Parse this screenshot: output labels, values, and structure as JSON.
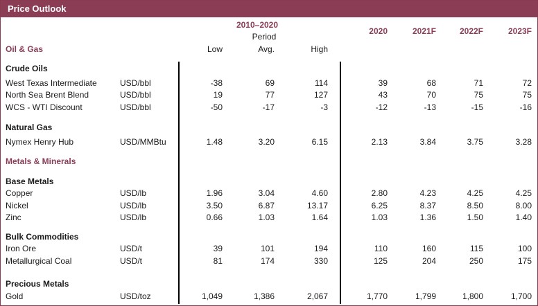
{
  "title": "Price Outlook",
  "header": {
    "period_range": "2010–2020",
    "period_word": "Period",
    "low": "Low",
    "avg": "Avg.",
    "high": "High",
    "years": [
      "2020",
      "2021F",
      "2022F",
      "2023F"
    ]
  },
  "sections": {
    "oil_gas": "Oil & Gas",
    "metals_minerals": "Metals & Minerals"
  },
  "groups": {
    "crude_oils": "Crude Oils",
    "natural_gas": "Natural Gas",
    "base_metals": "Base Metals",
    "bulk_commodities": "Bulk Commodities",
    "precious_metals": "Precious Metals"
  },
  "rows": [
    {
      "name": "West Texas Intermediate",
      "unit": "USD/bbl",
      "low": "-38",
      "avg": "69",
      "high": "114",
      "y2020": "39",
      "y2021": "68",
      "y2022": "71",
      "y2023": "72"
    },
    {
      "name": "North Sea Brent Blend",
      "unit": "USD/bbl",
      "low": "19",
      "avg": "77",
      "high": "127",
      "y2020": "43",
      "y2021": "70",
      "y2022": "75",
      "y2023": "75"
    },
    {
      "name": "WCS - WTI Discount",
      "unit": "USD/bbl",
      "low": "-50",
      "avg": "-17",
      "high": "-3",
      "y2020": "-12",
      "y2021": "-13",
      "y2022": "-15",
      "y2023": "-16"
    },
    {
      "name": "Nymex Henry Hub",
      "unit": "USD/MMBtu",
      "low": "1.48",
      "avg": "3.20",
      "high": "6.15",
      "y2020": "2.13",
      "y2021": "3.84",
      "y2022": "3.75",
      "y2023": "3.28"
    },
    {
      "name": "Copper",
      "unit": "USD/lb",
      "low": "1.96",
      "avg": "3.04",
      "high": "4.60",
      "y2020": "2.80",
      "y2021": "4.23",
      "y2022": "4.25",
      "y2023": "4.25"
    },
    {
      "name": "Nickel",
      "unit": "USD/lb",
      "low": "3.50",
      "avg": "6.87",
      "high": "13.17",
      "y2020": "6.25",
      "y2021": "8.37",
      "y2022": "8.50",
      "y2023": "8.00"
    },
    {
      "name": "Zinc",
      "unit": "USD/lb",
      "low": "0.66",
      "avg": "1.03",
      "high": "1.64",
      "y2020": "1.03",
      "y2021": "1.36",
      "y2022": "1.50",
      "y2023": "1.40"
    },
    {
      "name": "Iron Ore",
      "unit": "USD/t",
      "low": "39",
      "avg": "101",
      "high": "194",
      "y2020": "110",
      "y2021": "160",
      "y2022": "115",
      "y2023": "100"
    },
    {
      "name": "Metallurgical Coal",
      "unit": "USD/t",
      "low": "81",
      "avg": "174",
      "high": "330",
      "y2020": "125",
      "y2021": "204",
      "y2022": "250",
      "y2023": "175"
    },
    {
      "name": "Gold",
      "unit": "USD/toz",
      "low": "1,049",
      "avg": "1,386",
      "high": "2,067",
      "y2020": "1,770",
      "y2021": "1,799",
      "y2022": "1,800",
      "y2023": "1,700"
    }
  ]
}
